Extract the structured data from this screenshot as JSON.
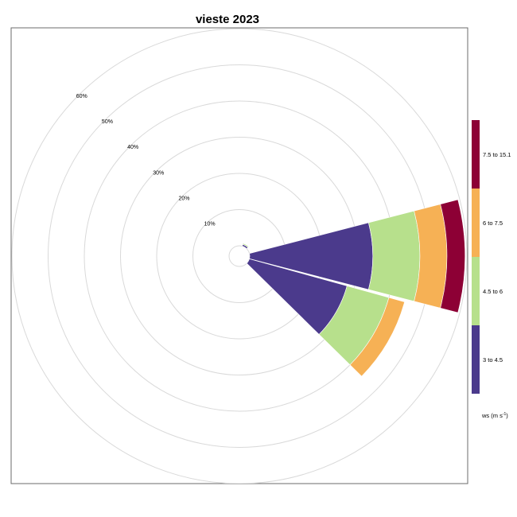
{
  "chart_data": {
    "type": "windrose",
    "title": "vieste 2023",
    "radial_ticks": [
      10,
      20,
      30,
      40,
      50,
      60
    ],
    "radial_tick_labels": [
      "10%",
      "20%",
      "30%",
      "40%",
      "50%",
      "60%"
    ],
    "radial_max": 62,
    "grid": true,
    "legend_position": "right",
    "legend_title": "ws (m s",
    "legend_title_sup": "-1",
    "legend_title_end": ")",
    "bins": [
      {
        "label": "3 to 4.5",
        "color": "#4b3a8c"
      },
      {
        "label": "4.5 to 6",
        "color": "#b7e08c"
      },
      {
        "label": "6 to 7.5",
        "color": "#f6b155"
      },
      {
        "label": "7.5 to 15.1",
        "color": "#8d0035"
      }
    ],
    "series": [
      {
        "direction": 30,
        "values": [
          0.5,
          0.3,
          0,
          0
        ]
      },
      {
        "direction": 90,
        "values": [
          34,
          13,
          7.5,
          5
        ]
      },
      {
        "direction": 120,
        "values": [
          28,
          12,
          4.5,
          0
        ]
      }
    ]
  }
}
